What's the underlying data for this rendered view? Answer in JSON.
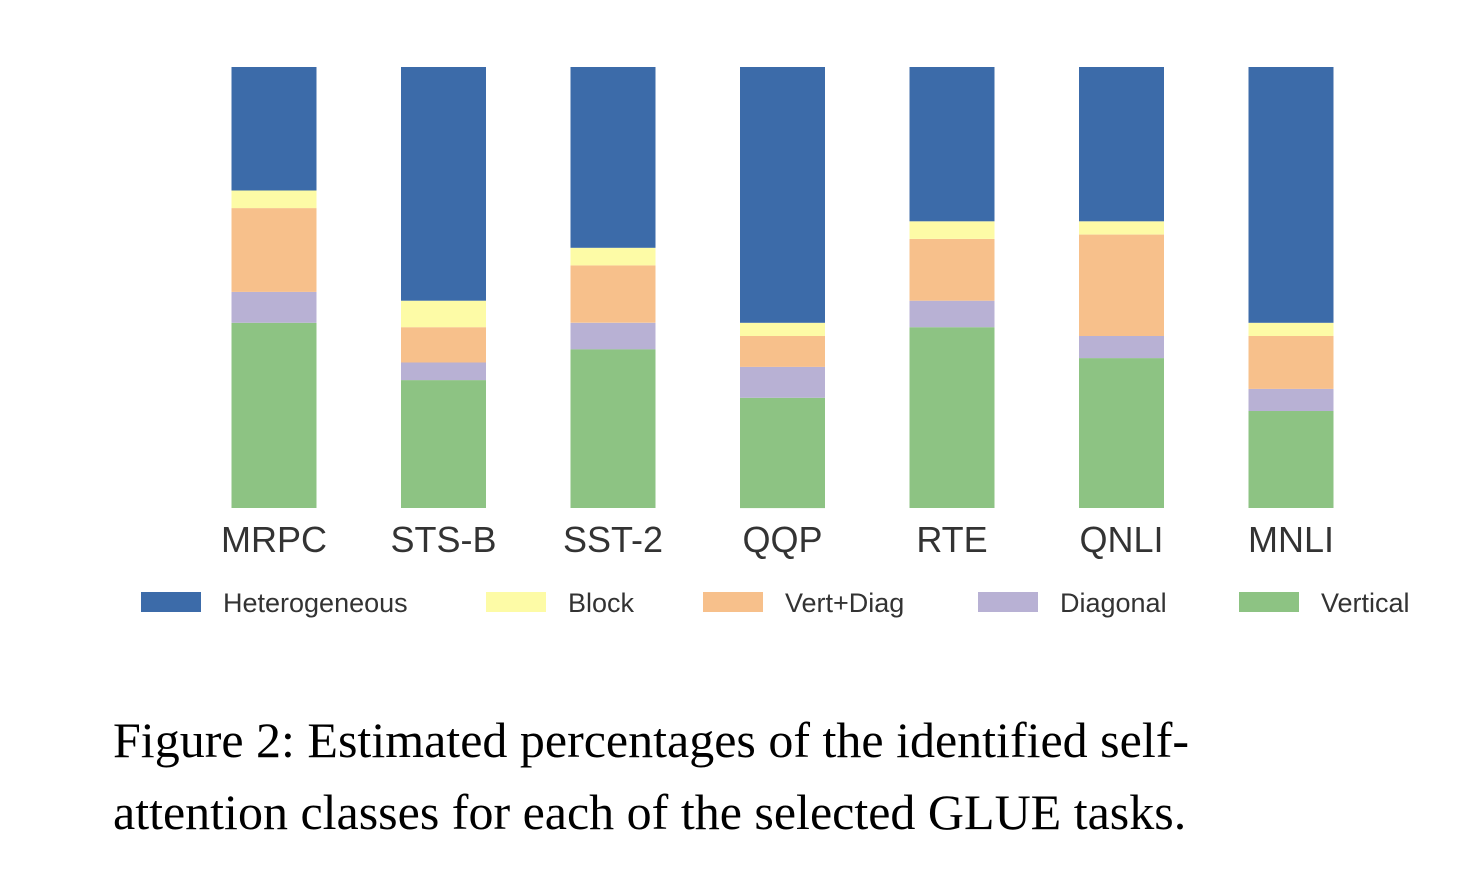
{
  "chart_data": {
    "type": "bar",
    "stacked": true,
    "title": "",
    "xlabel": "",
    "ylabel": "",
    "ylim": [
      0,
      100
    ],
    "grid": false,
    "legend_position": "bottom",
    "categories": [
      "MRPC",
      "STS-B",
      "SST-2",
      "QQP",
      "RTE",
      "QNLI",
      "MNLI"
    ],
    "series": [
      {
        "name": "Vertical",
        "color": "#8dc383",
        "values": [
          42,
          29,
          36,
          25,
          41,
          34,
          22
        ]
      },
      {
        "name": "Diagonal",
        "color": "#b8b1d4",
        "values": [
          7,
          4,
          6,
          7,
          6,
          5,
          5
        ]
      },
      {
        "name": "Vert+Diag",
        "color": "#f7c08b",
        "values": [
          19,
          8,
          13,
          7,
          14,
          23,
          12
        ]
      },
      {
        "name": "Block",
        "color": "#fdfba6",
        "values": [
          4,
          6,
          4,
          3,
          4,
          3,
          3
        ]
      },
      {
        "name": "Heterogeneous",
        "color": "#3c6ba9",
        "values": [
          28,
          53,
          41,
          58,
          35,
          35,
          58
        ]
      }
    ],
    "legend_order": [
      "Heterogeneous",
      "Block",
      "Vert+Diag",
      "Diagonal",
      "Vertical"
    ]
  },
  "caption": {
    "line1": "Figure 2: Estimated percentages of the identified self-",
    "line2": "attention classes for each of the selected GLUE tasks."
  }
}
